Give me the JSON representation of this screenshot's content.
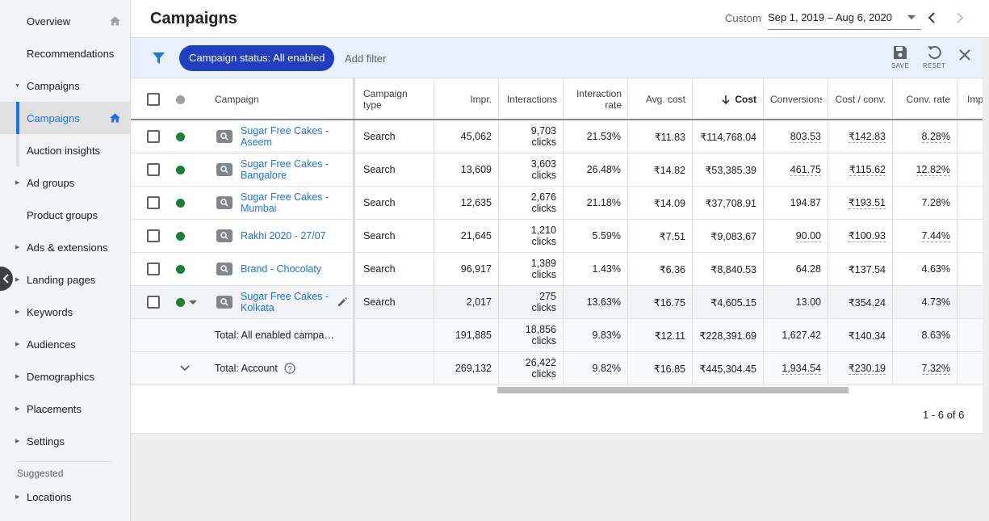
{
  "sidebar": {
    "items": [
      {
        "label": "Overview",
        "caret": "",
        "home": true
      },
      {
        "label": "Recommendations",
        "caret": "",
        "home": false
      },
      {
        "label": "Campaigns",
        "caret": "open",
        "home": false
      },
      {
        "label": "Campaigns",
        "caret": "",
        "home": true,
        "active": true
      },
      {
        "label": "Auction insights",
        "caret": "",
        "home": false
      },
      {
        "label": "Ad groups",
        "caret": "closed",
        "home": false
      },
      {
        "label": "Product groups",
        "caret": "",
        "home": false
      },
      {
        "label": "Ads & extensions",
        "caret": "closed",
        "home": false
      },
      {
        "label": "Landing pages",
        "caret": "closed",
        "home": false
      },
      {
        "label": "Keywords",
        "caret": "closed",
        "home": false
      },
      {
        "label": "Audiences",
        "caret": "closed",
        "home": false
      },
      {
        "label": "Demographics",
        "caret": "closed",
        "home": false
      },
      {
        "label": "Placements",
        "caret": "closed",
        "home": false
      },
      {
        "label": "Settings",
        "caret": "closed",
        "home": false
      }
    ],
    "suggested_label": "Suggested",
    "suggested_items": [
      {
        "label": "Locations"
      }
    ]
  },
  "header": {
    "title": "Campaigns",
    "date_label": "Custom",
    "date_range": "Sep 1, 2019 – Aug 6, 2020"
  },
  "filterbar": {
    "chip": "Campaign status: All enabled",
    "add_filter": "Add filter",
    "save_label": "SAVE",
    "reset_label": "RESET"
  },
  "table": {
    "columns": {
      "campaign": "Campaign",
      "campaign_type": "Campaign type",
      "impr": "Impr.",
      "interactions": "Interactions",
      "interaction_rate": "Interaction rate",
      "avg_cost": "Avg. cost",
      "cost": "Cost",
      "conversions": "Conversions",
      "cost_conv": "Cost / conv.",
      "conv_rate": "Conv. rate",
      "next": "Imp"
    },
    "rows": [
      {
        "campaign": "Sugar Free Cakes - Aseem",
        "type": "Search",
        "impr": "45,062",
        "interactions": "9,703",
        "interactions_unit": "clicks",
        "interaction_rate": "21.53%",
        "avg_cost": "₹11.83",
        "cost": "₹114,768.04",
        "conversions": "803.53",
        "cost_conv": "₹142.83",
        "conv_rate": "8.28%"
      },
      {
        "campaign": "Sugar Free Cakes - Bangalore",
        "type": "Search",
        "impr": "13,609",
        "interactions": "3,603",
        "interactions_unit": "clicks",
        "interaction_rate": "26.48%",
        "avg_cost": "₹14.82",
        "cost": "₹53,385.39",
        "conversions": "461.75",
        "cost_conv": "₹115.62",
        "conv_rate": "12.82%"
      },
      {
        "campaign": "Sugar Free Cakes - Mumbai",
        "type": "Search",
        "impr": "12,635",
        "interactions": "2,676",
        "interactions_unit": "clicks",
        "interaction_rate": "21.18%",
        "avg_cost": "₹14.09",
        "cost": "₹37,708.91",
        "conversions": "194.87",
        "cost_conv": "₹193.51",
        "conv_rate": "7.28%"
      },
      {
        "campaign": "Rakhi 2020 - 27/07",
        "type": "Search",
        "impr": "21,645",
        "interactions": "1,210",
        "interactions_unit": "clicks",
        "interaction_rate": "5.59%",
        "avg_cost": "₹7.51",
        "cost": "₹9,083.67",
        "conversions": "90.00",
        "cost_conv": "₹100.93",
        "conv_rate": "7.44%"
      },
      {
        "campaign": "Brand - Chocolaty",
        "type": "Search",
        "impr": "96,917",
        "interactions": "1,389",
        "interactions_unit": "clicks",
        "interaction_rate": "1.43%",
        "avg_cost": "₹6.36",
        "cost": "₹8,840.53",
        "conversions": "64.28",
        "cost_conv": "₹137.54",
        "conv_rate": "4.63%"
      },
      {
        "campaign": "Sugar Free Cakes - Kolkata",
        "type": "Search",
        "impr": "2,017",
        "interactions": "275",
        "interactions_unit": "clicks",
        "interaction_rate": "13.63%",
        "avg_cost": "₹16.75",
        "cost": "₹4,605.15",
        "conversions": "13.00",
        "cost_conv": "₹354.24",
        "conv_rate": "4.73%"
      }
    ],
    "totals": [
      {
        "label": "Total: All enabled campa…",
        "impr": "191,885",
        "interactions": "18,856",
        "interactions_unit": "clicks",
        "interaction_rate": "9.83%",
        "avg_cost": "₹12.11",
        "cost": "₹228,391.69",
        "conversions": "1,627.42",
        "cost_conv": "₹140.34",
        "conv_rate": "8.63%"
      },
      {
        "label": "Total: Account",
        "impr": "269,132",
        "interactions": "26,422",
        "interactions_unit": "clicks",
        "interaction_rate": "9.82%",
        "avg_cost": "₹16.85",
        "cost": "₹445,304.45",
        "conversions": "1,934.54",
        "cost_conv": "₹230.19",
        "conv_rate": "7.32%"
      }
    ],
    "pagination": "1 - 6 of 6"
  },
  "colors": {
    "accent": "#1a73e8",
    "chip": "#1f3fbf",
    "enabled": "#188038",
    "filter_bar": "#e8f0fe"
  }
}
